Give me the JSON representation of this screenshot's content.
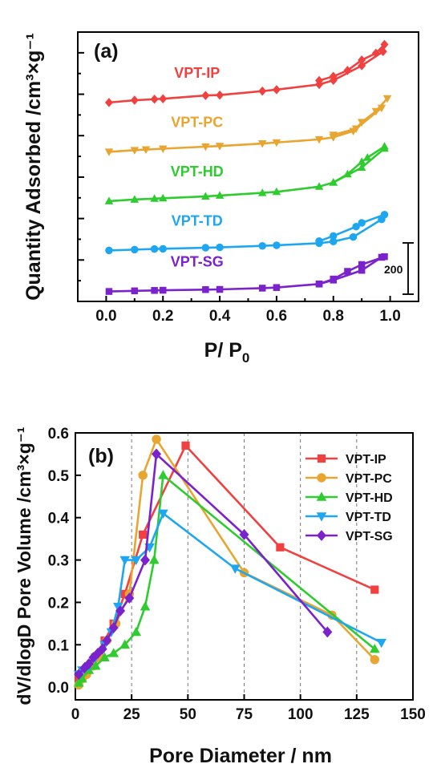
{
  "colors": {
    "VPT-IP": "#f04040",
    "VPT-PC": "#e8a530",
    "VPT-HD": "#2ecc2e",
    "VPT-TD": "#1ea7f0",
    "VPT-SG": "#7a22cc"
  },
  "chart_data": [
    {
      "type": "line",
      "panel_label": "(a)",
      "xlabel": "P/ P0",
      "xlabel_main": "P/ P",
      "xlabel_sub": "0",
      "ylabel": "Quantity Adsorbed /cm³×g⁻¹",
      "xlim": [
        -0.1,
        1.1
      ],
      "xticks": [
        "0.0",
        "0.2",
        "0.4",
        "0.6",
        "0.8",
        "1.0"
      ],
      "ylim": [
        0,
        1300
      ],
      "scale_bar_label": "200",
      "scale_bar_value": 200,
      "series": [
        {
          "name": "VPT-IP",
          "marker": "diamond",
          "offset": 960,
          "adsorption": [
            [
              0.01,
              0
            ],
            [
              0.1,
              11
            ],
            [
              0.17,
              16
            ],
            [
              0.2,
              18
            ],
            [
              0.35,
              34
            ],
            [
              0.4,
              36
            ],
            [
              0.55,
              55
            ],
            [
              0.6,
              62
            ],
            [
              0.75,
              87
            ],
            [
              0.8,
              107
            ],
            [
              0.9,
              178
            ],
            [
              0.975,
              246
            ]
          ],
          "desorption": [
            [
              0.98,
              280
            ],
            [
              0.95,
              238
            ],
            [
              0.9,
              205
            ],
            [
              0.85,
              155
            ],
            [
              0.8,
              126
            ],
            [
              0.75,
              106
            ]
          ]
        },
        {
          "name": "VPT-PC",
          "marker": "triangle-down",
          "offset": 722,
          "adsorption": [
            [
              0.01,
              0
            ],
            [
              0.1,
              8
            ],
            [
              0.14,
              11
            ],
            [
              0.2,
              15
            ],
            [
              0.35,
              25
            ],
            [
              0.4,
              28
            ],
            [
              0.55,
              40
            ],
            [
              0.6,
              45
            ],
            [
              0.75,
              60
            ],
            [
              0.8,
              70
            ],
            [
              0.87,
              100
            ],
            [
              0.97,
              212
            ]
          ],
          "desorption": [
            [
              0.99,
              258
            ],
            [
              0.95,
              196
            ],
            [
              0.9,
              143
            ],
            [
              0.88,
              112
            ],
            [
              0.8,
              82
            ]
          ]
        },
        {
          "name": "VPT-HD",
          "marker": "triangle-up",
          "offset": 484,
          "adsorption": [
            [
              0.01,
              0
            ],
            [
              0.1,
              8
            ],
            [
              0.17,
              12
            ],
            [
              0.2,
              14
            ],
            [
              0.35,
              23
            ],
            [
              0.4,
              27
            ],
            [
              0.55,
              40
            ],
            [
              0.6,
              45
            ],
            [
              0.75,
              70
            ],
            [
              0.8,
              90
            ],
            [
              0.9,
              162
            ],
            [
              0.98,
              254
            ]
          ],
          "desorption": [
            [
              0.98,
              264
            ],
            [
              0.92,
              210
            ],
            [
              0.9,
              190
            ],
            [
              0.85,
              130
            ],
            [
              0.8,
              90
            ]
          ]
        },
        {
          "name": "VPT-TD",
          "marker": "circle",
          "offset": 246,
          "adsorption": [
            [
              0.01,
              0
            ],
            [
              0.1,
              4
            ],
            [
              0.17,
              7
            ],
            [
              0.2,
              8
            ],
            [
              0.35,
              13
            ],
            [
              0.4,
              15
            ],
            [
              0.55,
              22
            ],
            [
              0.6,
              25
            ],
            [
              0.75,
              35
            ],
            [
              0.8,
              43
            ],
            [
              0.87,
              65
            ],
            [
              0.97,
              150
            ]
          ],
          "desorption": [
            [
              0.98,
              173
            ],
            [
              0.9,
              133
            ],
            [
              0.88,
              115
            ],
            [
              0.8,
              70
            ],
            [
              0.75,
              45
            ]
          ]
        },
        {
          "name": "VPT-SG",
          "marker": "square",
          "offset": 48,
          "adsorption": [
            [
              0.01,
              0
            ],
            [
              0.1,
              3
            ],
            [
              0.17,
              5
            ],
            [
              0.2,
              6
            ],
            [
              0.35,
              9
            ],
            [
              0.4,
              10
            ],
            [
              0.55,
              16
            ],
            [
              0.6,
              19
            ],
            [
              0.75,
              36
            ],
            [
              0.8,
              55
            ],
            [
              0.9,
              102
            ],
            [
              0.97,
              165
            ]
          ],
          "desorption": [
            [
              0.98,
              168
            ],
            [
              0.9,
              130
            ],
            [
              0.85,
              97
            ],
            [
              0.8,
              60
            ],
            [
              0.75,
              36
            ]
          ]
        }
      ]
    },
    {
      "type": "line",
      "panel_label": "(b)",
      "xlabel": "Pore Diameter / nm",
      "ylabel": "dV/dlogD Pore Volume /cm³×g⁻¹",
      "xlim": [
        0,
        150
      ],
      "ylim": [
        -0.03,
        0.6
      ],
      "xticks": [
        "0",
        "25",
        "50",
        "75",
        "100",
        "125",
        "150"
      ],
      "yticks": [
        "0.0",
        "0.1",
        "0.2",
        "0.3",
        "0.4",
        "0.5",
        "0.6"
      ],
      "grid_x": [
        25,
        50,
        75,
        100,
        125
      ],
      "legend": "top-right",
      "series": [
        {
          "name": "VPT-IP",
          "marker": "square",
          "points": [
            [
              1.5,
              0.02
            ],
            [
              3,
              0.03
            ],
            [
              5,
              0.045
            ],
            [
              7,
              0.055
            ],
            [
              9,
              0.07
            ],
            [
              13,
              0.11
            ],
            [
              17,
              0.15
            ],
            [
              22,
              0.22
            ],
            [
              30,
              0.36
            ],
            [
              49,
              0.57
            ],
            [
              91,
              0.33
            ],
            [
              133,
              0.23
            ]
          ]
        },
        {
          "name": "VPT-PC",
          "marker": "circle",
          "points": [
            [
              1.5,
              0.005
            ],
            [
              3,
              0.02
            ],
            [
              5,
              0.03
            ],
            [
              8,
              0.05
            ],
            [
              11,
              0.07
            ],
            [
              14,
              0.11
            ],
            [
              18,
              0.15
            ],
            [
              24,
              0.22
            ],
            [
              30,
              0.5
            ],
            [
              36,
              0.585
            ],
            [
              75,
              0.27
            ],
            [
              114,
              0.17
            ],
            [
              133,
              0.065
            ]
          ]
        },
        {
          "name": "VPT-HD",
          "marker": "triangle-up",
          "points": [
            [
              1.5,
              0.01
            ],
            [
              3,
              0.02
            ],
            [
              6,
              0.04
            ],
            [
              9,
              0.05
            ],
            [
              13,
              0.07
            ],
            [
              17,
              0.08
            ],
            [
              22,
              0.1
            ],
            [
              27,
              0.13
            ],
            [
              31,
              0.19
            ],
            [
              35,
              0.3
            ],
            [
              39,
              0.5
            ],
            [
              133,
              0.09
            ]
          ]
        },
        {
          "name": "VPT-TD",
          "marker": "triangle-down",
          "points": [
            [
              1.5,
              0.03
            ],
            [
              3,
              0.04
            ],
            [
              6,
              0.05
            ],
            [
              9,
              0.07
            ],
            [
              13,
              0.1
            ],
            [
              16,
              0.13
            ],
            [
              19,
              0.19
            ],
            [
              22,
              0.3
            ],
            [
              27,
              0.3
            ],
            [
              33,
              0.33
            ],
            [
              39,
              0.41
            ],
            [
              71,
              0.28
            ],
            [
              136,
              0.105
            ]
          ]
        },
        {
          "name": "VPT-SG",
          "marker": "diamond",
          "points": [
            [
              1.5,
              0.03
            ],
            [
              4,
              0.045
            ],
            [
              6,
              0.055
            ],
            [
              8,
              0.07
            ],
            [
              10,
              0.08
            ],
            [
              12,
              0.09
            ],
            [
              14,
              0.11
            ],
            [
              17,
              0.14
            ],
            [
              20,
              0.18
            ],
            [
              24,
              0.21
            ],
            [
              31,
              0.3
            ],
            [
              36,
              0.55
            ],
            [
              75,
              0.36
            ],
            [
              112,
              0.13
            ]
          ]
        }
      ]
    }
  ]
}
